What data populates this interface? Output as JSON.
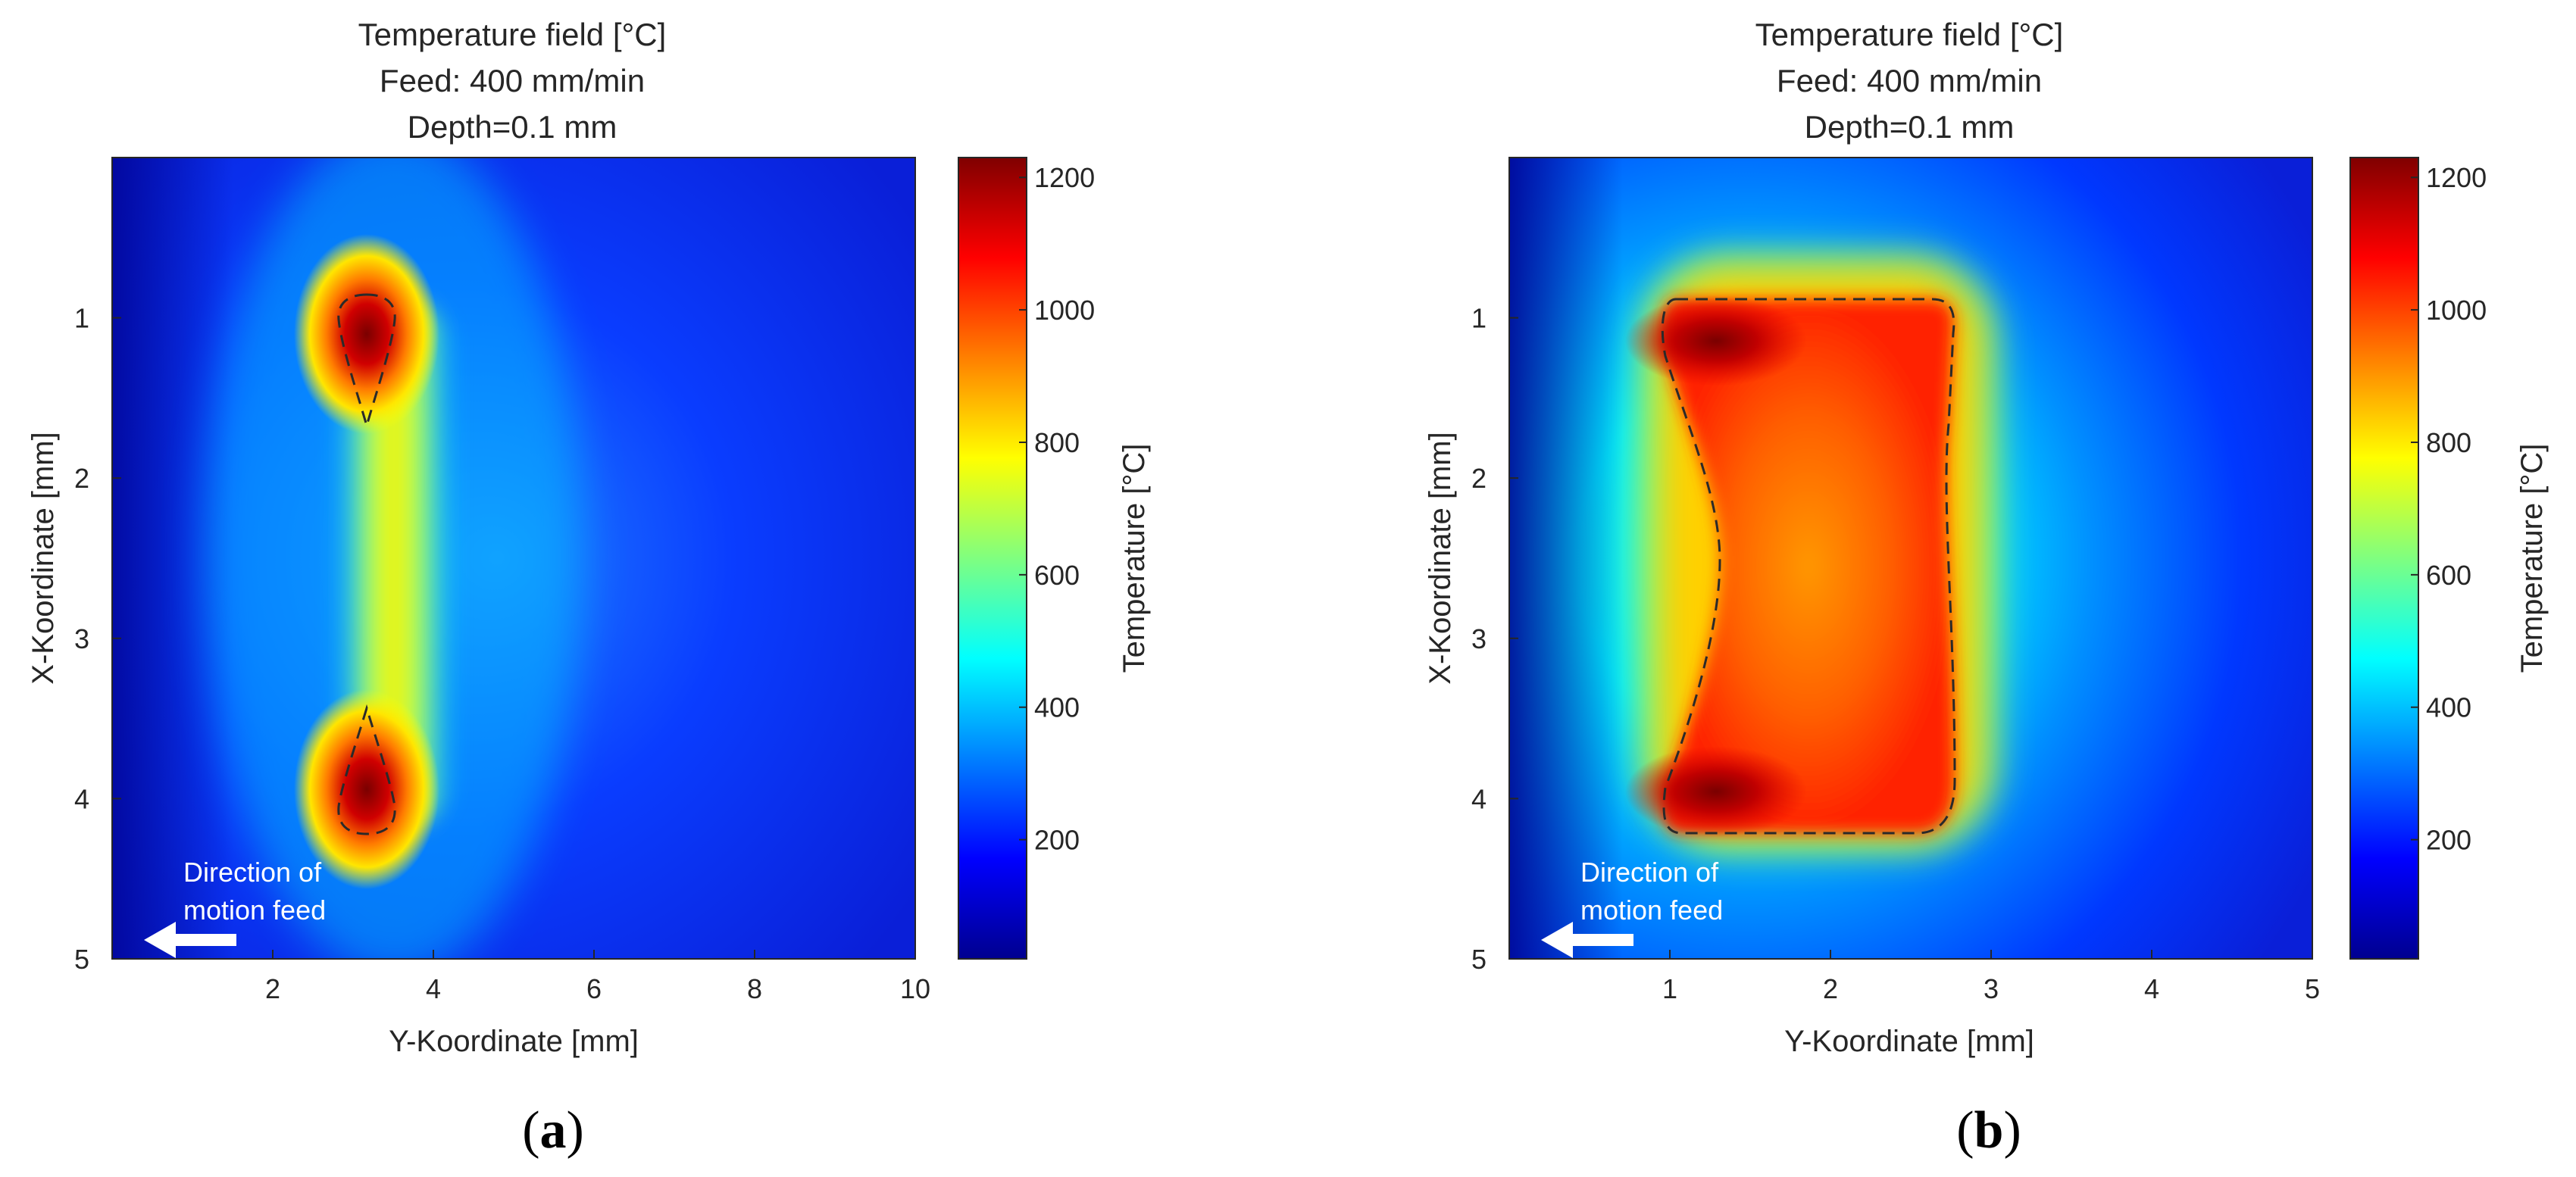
{
  "chart_data": [
    {
      "type": "heatmap",
      "panel_label": "(a)",
      "panel_letter": "a",
      "title_lines": [
        "Temperature field [°C]",
        "Feed: 400 mm/min",
        "Depth=0.1 mm"
      ],
      "xlabel": "Y-Koordinate [mm]",
      "ylabel": "X-Koordinate [mm]",
      "xlim": [
        0,
        10
      ],
      "ylim": [
        0,
        5
      ],
      "y_reversed": true,
      "xticks": [
        2,
        4,
        6,
        8,
        10
      ],
      "yticks": [
        1,
        2,
        3,
        4,
        5
      ],
      "colorbar": {
        "label": "Temperature [°C]",
        "range": [
          20,
          1230
        ],
        "ticks": [
          200,
          400,
          600,
          800,
          1000,
          1200
        ],
        "colormap": "jet"
      },
      "field": {
        "background_c": 110,
        "hot_spots": [
          {
            "y": 3.25,
            "x": 1.1,
            "peak_c": 1230
          },
          {
            "y": 3.25,
            "x": 4.0,
            "peak_c": 1230
          }
        ],
        "connecting_band": {
          "y": 3.3,
          "x_from": 1.0,
          "x_to": 4.1,
          "temp_c": 760
        },
        "melt_contour": "dashed"
      },
      "annotation": {
        "line1": "Direction of",
        "line2": "motion feed",
        "arrow": "left"
      }
    },
    {
      "type": "heatmap",
      "panel_label": "(b)",
      "panel_letter": "b",
      "title_lines": [
        "Temperature field [°C]",
        "Feed: 400 mm/min",
        "Depth=0.1 mm"
      ],
      "xlabel": "Y-Koordinate [mm]",
      "ylabel": "X-Koordinate [mm]",
      "xlim": [
        0,
        5
      ],
      "ylim": [
        0,
        5
      ],
      "y_reversed": true,
      "xticks": [
        1,
        2,
        3,
        4,
        5
      ],
      "yticks": [
        1,
        2,
        3,
        4,
        5
      ],
      "colorbar": {
        "label": "Temperature [°C]",
        "range": [
          20,
          1230
        ],
        "ticks": [
          200,
          400,
          600,
          800,
          1000,
          1200
        ],
        "colormap": "jet"
      },
      "field": {
        "background_c": 150,
        "hot_region": {
          "y_from": 0.95,
          "y_to": 2.6,
          "x_from": 0.9,
          "x_to": 4.25,
          "temp_c": 1050
        },
        "hot_spots": [
          {
            "y": 1.2,
            "x": 1.1,
            "peak_c": 1230
          },
          {
            "y": 1.2,
            "x": 4.0,
            "peak_c": 1230
          }
        ],
        "melt_contour": "dashed"
      },
      "annotation": {
        "line1": "Direction of",
        "line2": "motion feed",
        "arrow": "left"
      }
    }
  ],
  "colors": {
    "jet": [
      "#00008f",
      "#0000ff",
      "#00ffff",
      "#ffff00",
      "#ff0000",
      "#800000"
    ],
    "axis_text": "#262626",
    "annotation": "#ffffff"
  }
}
